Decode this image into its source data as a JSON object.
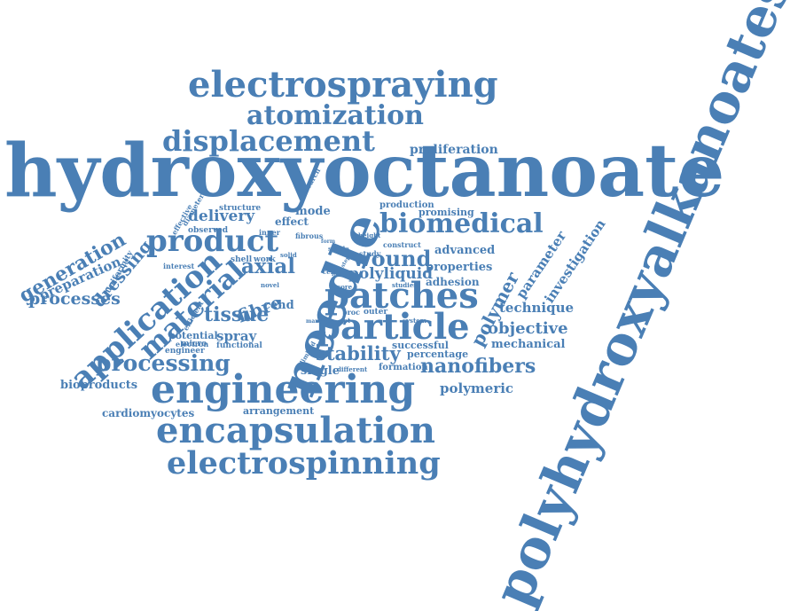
{
  "palette": {
    "word_color": "#4a7fb5"
  },
  "words": [
    "hydroxyoctanoate",
    "polyhydroxyalkanoates",
    "needle",
    "engineering",
    "electrospraying",
    "encapsulation",
    "electrospinning",
    "patches",
    "atomization",
    "displacement",
    "particle",
    "product",
    "application",
    "material",
    "biomedical",
    "generation",
    "processing",
    "tissue",
    "nanofibers",
    "wound",
    "fibre",
    "axial",
    "stability",
    "polymer",
    "dressing",
    "processes",
    "objective",
    "technique",
    "delivery",
    "polyliquid",
    "spray",
    "polymeric",
    "bioproducts",
    "mechanical",
    "advanced",
    "properties",
    "cardiomyocytes",
    "parameter",
    "investigation",
    "proliferation",
    "preparation",
    "cehd",
    "mode",
    "promising",
    "adhesion",
    "production",
    "potential",
    "arrangement",
    "single",
    "successful",
    "percentage",
    "effect",
    "formation",
    "uniformity",
    "shell",
    "work",
    "observed",
    "interest",
    "structure",
    "micro",
    "outer",
    "proc",
    "functional",
    "engineer",
    "electron",
    "efficient",
    "effective",
    "diameter",
    "inner",
    "research",
    "fibrous",
    "stable",
    "construct",
    "study",
    "height",
    "novel",
    "solid",
    "studies",
    "jet",
    "system",
    "core",
    "different",
    "limited",
    "many",
    "form",
    "step",
    "cell",
    "low"
  ]
}
